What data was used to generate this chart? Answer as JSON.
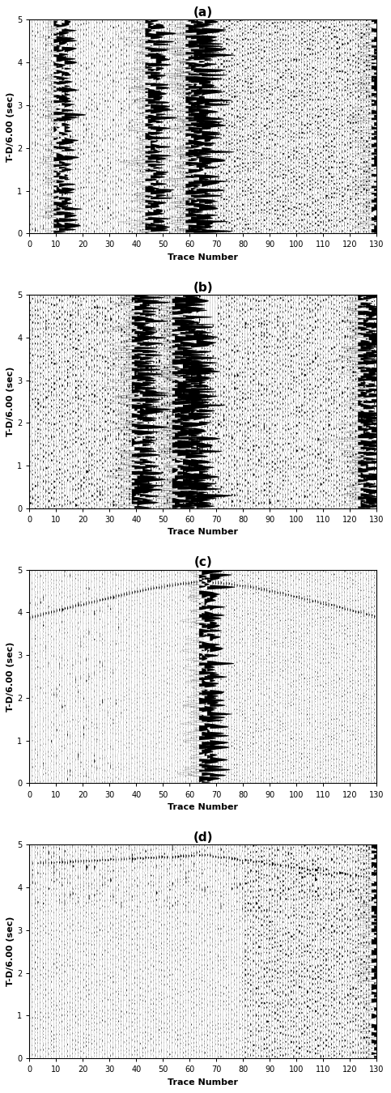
{
  "panels": [
    "(a)",
    "(b)",
    "(c)",
    "(d)"
  ],
  "xlabel": "Trace Number",
  "ylabel": "T-D/6.00 (sec)",
  "xlim": [
    0,
    130
  ],
  "ylim": [
    0.0,
    5.0
  ],
  "xticks": [
    0,
    10,
    20,
    30,
    40,
    50,
    60,
    70,
    80,
    90,
    100,
    110,
    120,
    130
  ],
  "yticks": [
    0.0,
    1.0,
    2.0,
    3.0,
    4.0,
    5.0
  ],
  "n_traces": 130,
  "n_time": 500,
  "background_color": "#ffffff",
  "figsize": [
    4.83,
    13.5
  ],
  "dpi": 100,
  "panel_label_fontsize": 11,
  "axis_label_fontsize": 8,
  "tick_fontsize": 7
}
